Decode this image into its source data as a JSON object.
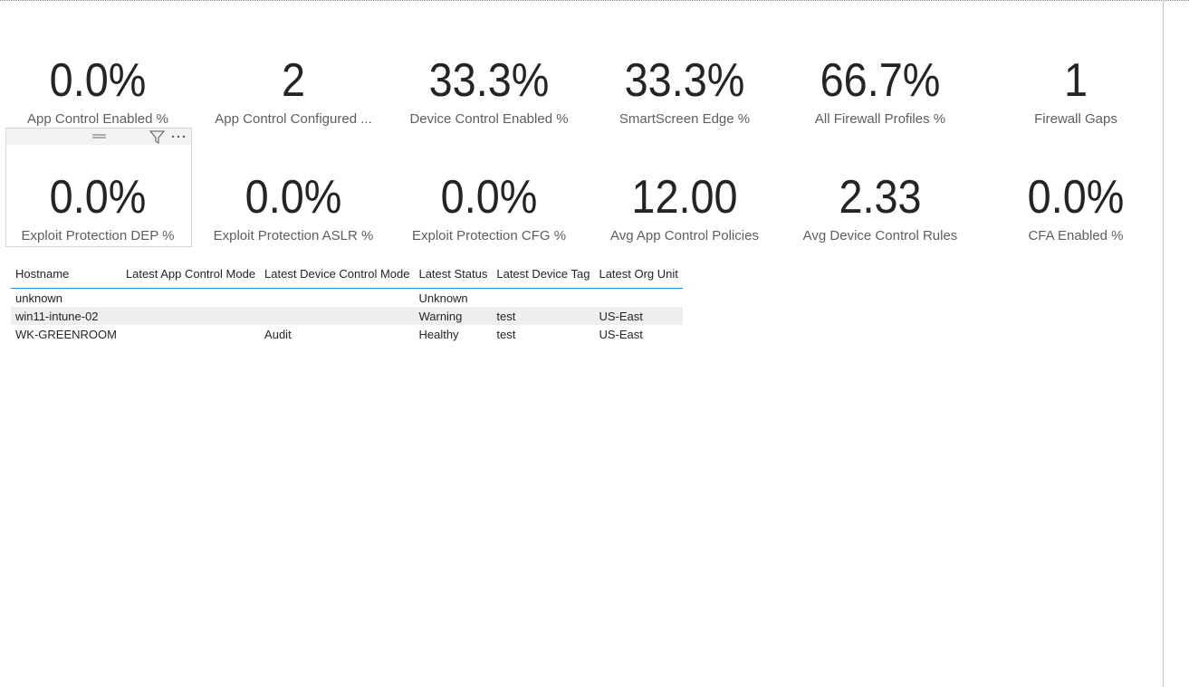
{
  "cards": [
    {
      "value": "0.0%",
      "label": "App Control Enabled %"
    },
    {
      "value": "2",
      "label": "App Control Configured ..."
    },
    {
      "value": "33.3%",
      "label": "Device Control Enabled %"
    },
    {
      "value": "33.3%",
      "label": "SmartScreen Edge %"
    },
    {
      "value": "66.7%",
      "label": "All Firewall Profiles %"
    },
    {
      "value": "1",
      "label": "Firewall Gaps"
    },
    {
      "value": "0.0%",
      "label": "Exploit Protection DEP %"
    },
    {
      "value": "0.0%",
      "label": "Exploit Protection ASLR %"
    },
    {
      "value": "0.0%",
      "label": "Exploit Protection CFG %"
    },
    {
      "value": "12.00",
      "label": "Avg App Control Policies"
    },
    {
      "value": "2.33",
      "label": "Avg Device Control Rules"
    },
    {
      "value": "0.0%",
      "label": "CFA Enabled %"
    }
  ],
  "table": {
    "columns": [
      "Hostname",
      "Latest App Control Mode",
      "Latest Device Control Mode",
      "Latest Status",
      "Latest Device Tag",
      "Latest Org Unit"
    ],
    "rows": [
      [
        "unknown",
        null,
        null,
        "Unknown",
        null,
        null
      ],
      [
        "win11-intune-02",
        null,
        null,
        "Warning",
        "test",
        "US-East"
      ],
      [
        "WK-GREENROOM",
        null,
        "Audit",
        "Healthy",
        "test",
        "US-East"
      ]
    ]
  }
}
